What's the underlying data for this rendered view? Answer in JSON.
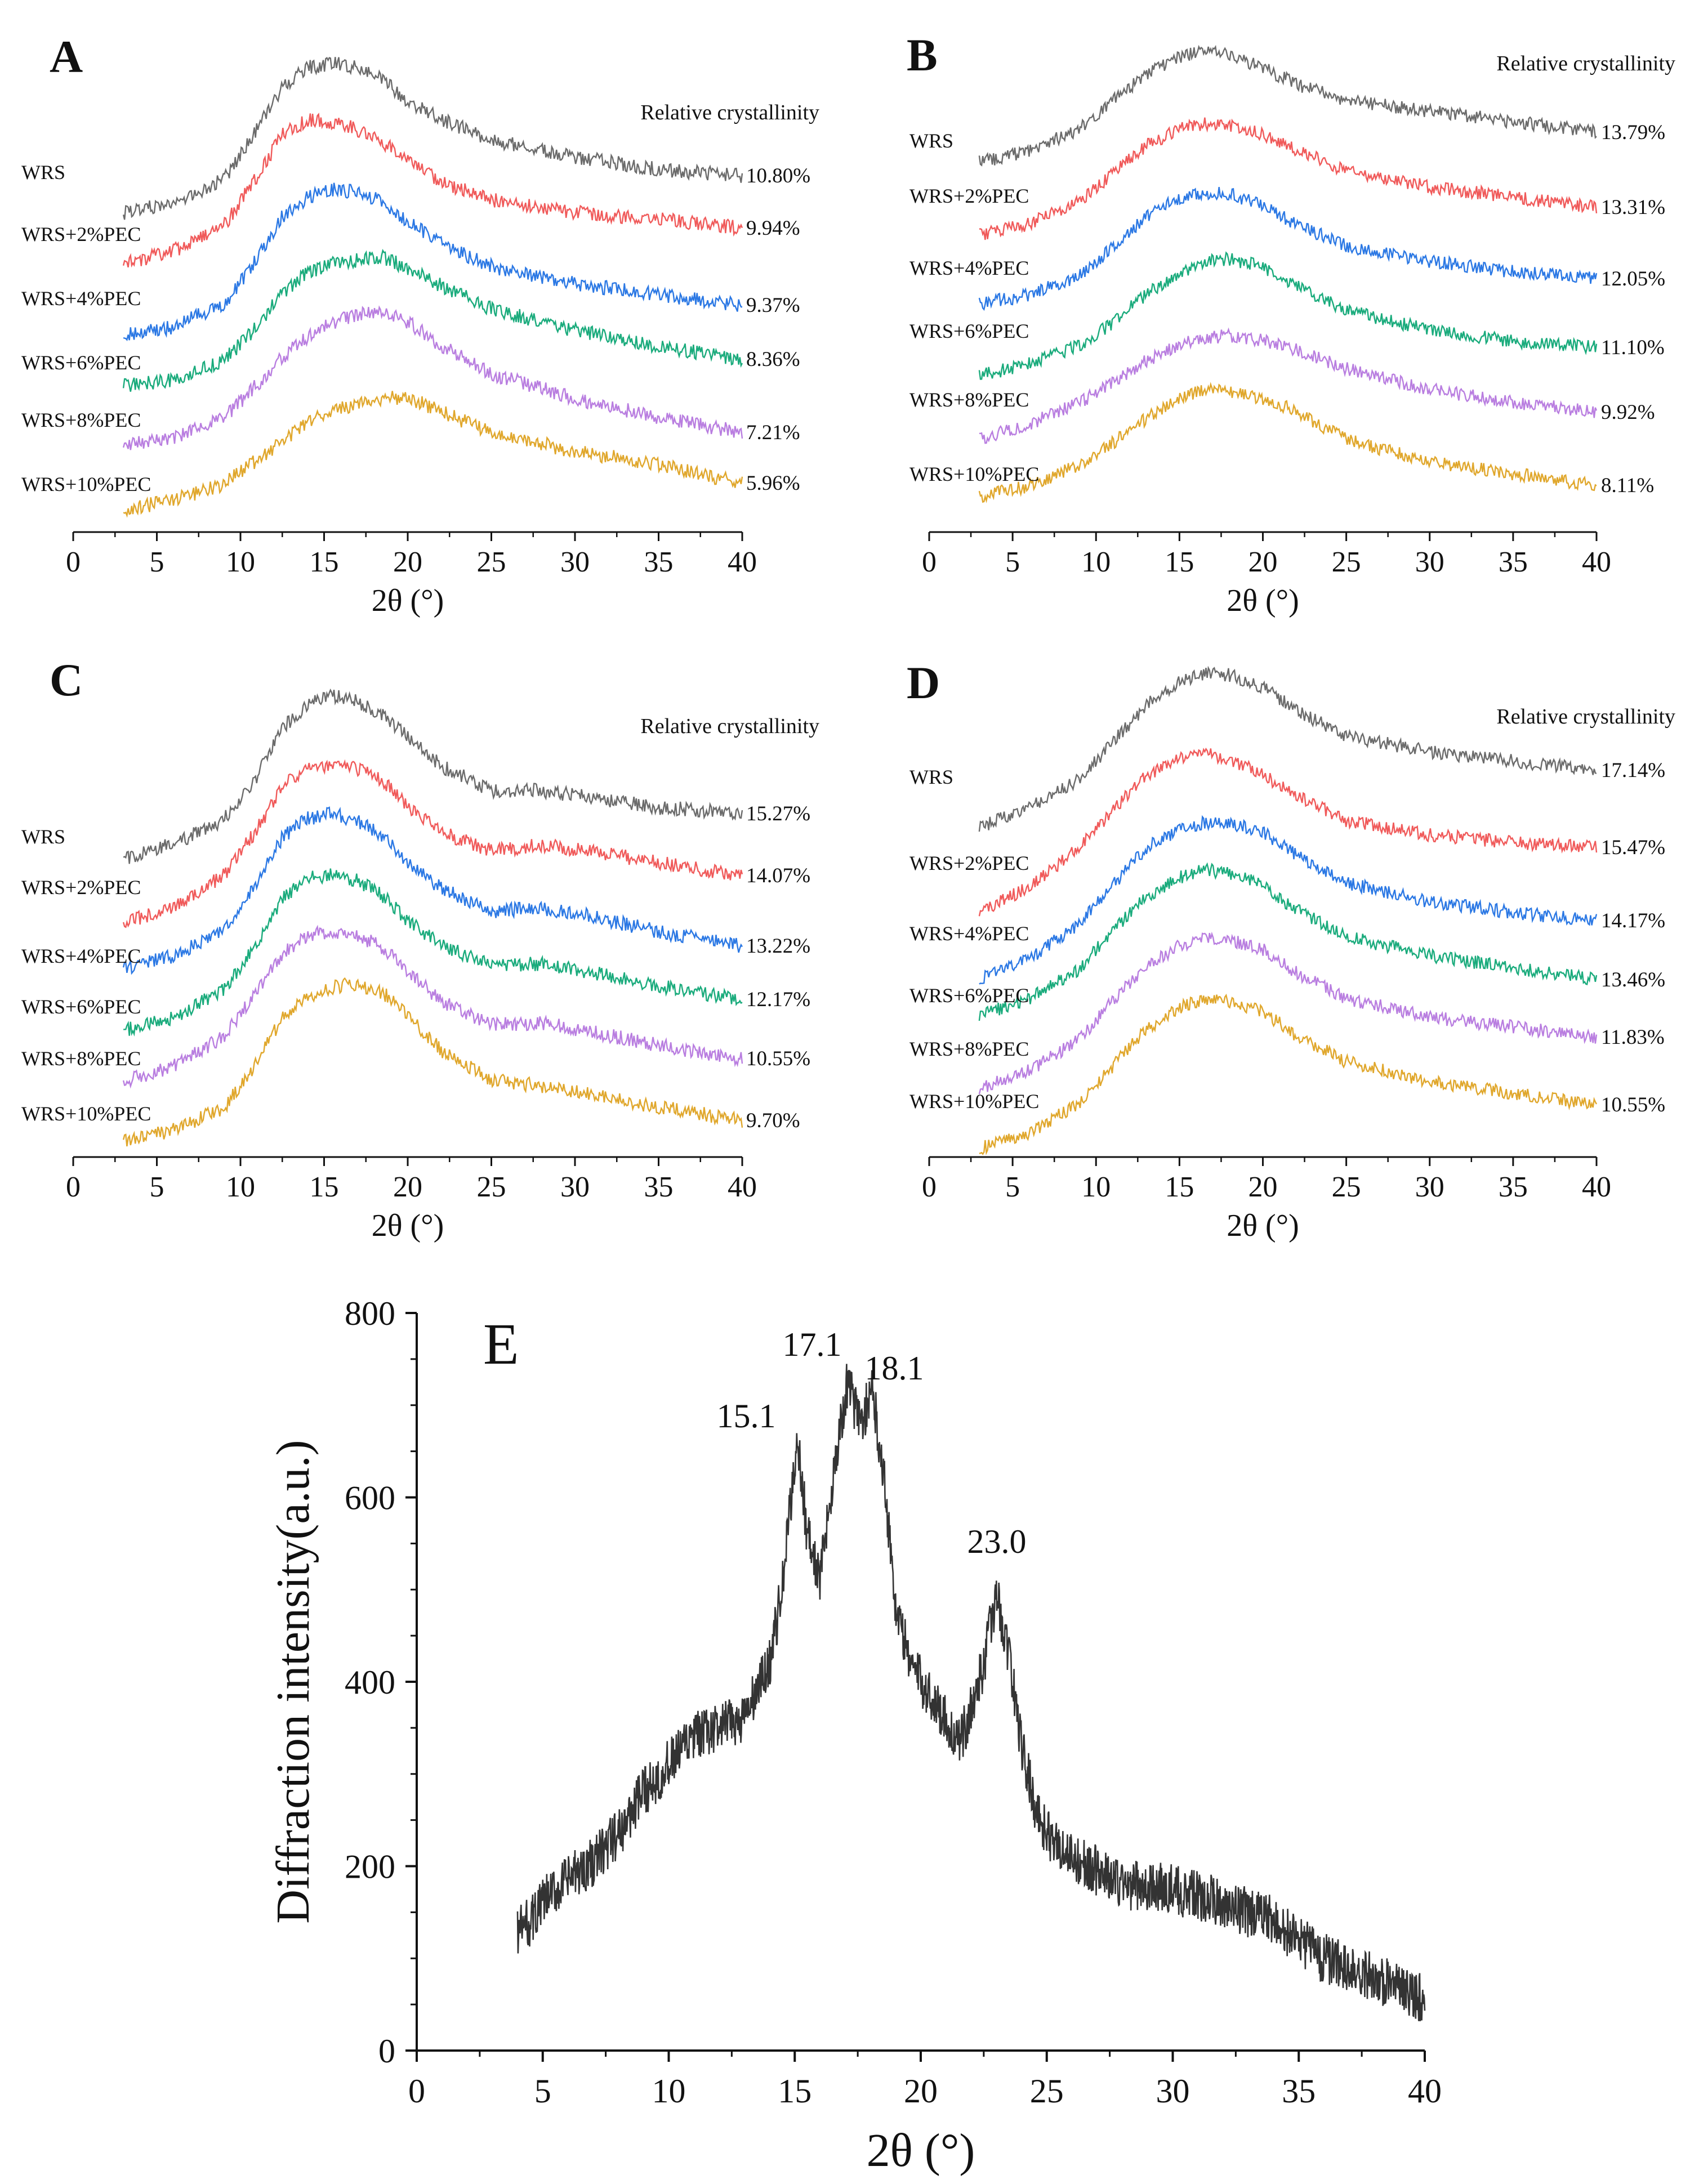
{
  "chart_data": [
    {
      "panel": "A",
      "type": "line",
      "xlabel": "2θ (°)",
      "xlim": [
        0,
        40
      ],
      "xticks": [
        0,
        5,
        10,
        15,
        20,
        25,
        30,
        35,
        40
      ],
      "annotation_title": "Relative crystallinity",
      "series": [
        {
          "name": "WRS",
          "value_label": "10.80%",
          "color": "#6b6b6b",
          "x": [
            3,
            6,
            9,
            11,
            12.5,
            14,
            15.5,
            17,
            18.5,
            20,
            22,
            25,
            30,
            35,
            40
          ],
          "y": [
            0,
            0.05,
            0.2,
            0.55,
            0.85,
            0.98,
            1.0,
            0.96,
            0.86,
            0.7,
            0.55,
            0.38,
            0.22,
            0.1,
            0.02
          ]
        },
        {
          "name": "WRS+2%PEC",
          "value_label": "9.94%",
          "color": "#f05a5a",
          "x": [
            3,
            6,
            9,
            11,
            12.5,
            14,
            15.5,
            17,
            18.5,
            20,
            22,
            25,
            30,
            35,
            40
          ],
          "y": [
            0,
            0.08,
            0.25,
            0.6,
            0.9,
            1.0,
            0.98,
            0.92,
            0.82,
            0.68,
            0.52,
            0.38,
            0.27,
            0.2,
            0.12
          ]
        },
        {
          "name": "WRS+4%PEC",
          "value_label": "9.37%",
          "color": "#2b78e4",
          "x": [
            3,
            6,
            9,
            11,
            12.5,
            14,
            15.5,
            17,
            18.5,
            20,
            22,
            25,
            30,
            35,
            40
          ],
          "y": [
            0,
            0.05,
            0.2,
            0.52,
            0.82,
            0.95,
            1.0,
            0.98,
            0.9,
            0.75,
            0.58,
            0.4,
            0.25,
            0.15,
            0.05
          ]
        },
        {
          "name": "WRS+6%PEC",
          "value_label": "8.36%",
          "color": "#1aab7c",
          "x": [
            3,
            6,
            9,
            11,
            12.5,
            14,
            15.5,
            17,
            18.5,
            20,
            22,
            25,
            30,
            35,
            40
          ],
          "y": [
            0,
            0.05,
            0.2,
            0.45,
            0.7,
            0.85,
            0.92,
            0.95,
            0.98,
            0.9,
            0.78,
            0.62,
            0.48,
            0.38,
            0.3
          ]
        },
        {
          "name": "WRS+8%PEC",
          "value_label": "7.21%",
          "color": "#b97ee0",
          "x": [
            3,
            6,
            9,
            11,
            12.5,
            14,
            15.5,
            17,
            18.5,
            20,
            22,
            25,
            30,
            35,
            40
          ],
          "y": [
            0,
            0.05,
            0.2,
            0.45,
            0.65,
            0.8,
            0.9,
            0.97,
            1.0,
            0.92,
            0.75,
            0.55,
            0.38,
            0.25,
            0.15
          ]
        },
        {
          "name": "WRS+10%PEC",
          "value_label": "5.96%",
          "color": "#e0a72c",
          "x": [
            3,
            6,
            9,
            11,
            12.5,
            14,
            15.5,
            17,
            18.5,
            20,
            22,
            25,
            30,
            35,
            40
          ],
          "y": [
            0,
            0.1,
            0.25,
            0.45,
            0.6,
            0.75,
            0.85,
            0.92,
            0.98,
            1.0,
            0.92,
            0.8,
            0.72,
            0.68,
            0.6
          ]
        }
      ]
    },
    {
      "panel": "B",
      "type": "line",
      "xlabel": "2θ (°)",
      "xlim": [
        0,
        40
      ],
      "xticks": [
        0,
        5,
        10,
        15,
        20,
        25,
        30,
        35,
        40
      ],
      "annotation_title": "Relative crystallinity",
      "series": [
        {
          "name": "WRS",
          "value_label": "13.79%",
          "color": "#6b6b6b",
          "x": [
            3,
            6,
            9,
            11,
            13,
            15,
            16.5,
            18,
            20,
            22,
            25,
            30,
            35,
            40
          ],
          "y": [
            0,
            0.1,
            0.3,
            0.55,
            0.8,
            0.95,
            1.0,
            0.96,
            0.85,
            0.7,
            0.55,
            0.45,
            0.35,
            0.25
          ]
        },
        {
          "name": "WRS+2%PEC",
          "value_label": "13.31%",
          "color": "#f05a5a",
          "x": [
            3,
            6,
            9,
            11,
            13,
            15,
            16.5,
            18,
            20,
            22,
            25,
            30,
            35,
            40
          ],
          "y": [
            0,
            0.1,
            0.3,
            0.55,
            0.8,
            0.95,
            1.0,
            0.98,
            0.9,
            0.75,
            0.55,
            0.4,
            0.3,
            0.2
          ]
        },
        {
          "name": "WRS+4%PEC",
          "value_label": "12.05%",
          "color": "#2b78e4",
          "x": [
            3,
            6,
            9,
            11,
            13,
            15,
            16.5,
            18,
            20,
            22,
            25,
            30,
            35,
            40
          ],
          "y": [
            0,
            0.08,
            0.25,
            0.5,
            0.78,
            0.95,
            1.0,
            0.98,
            0.88,
            0.7,
            0.5,
            0.35,
            0.25,
            0.18
          ]
        },
        {
          "name": "WRS+6%PEC",
          "value_label": "11.10%",
          "color": "#1aab7c",
          "x": [
            3,
            6,
            9,
            11,
            13,
            15,
            16.5,
            18,
            20,
            22,
            25,
            30,
            35,
            40
          ],
          "y": [
            0,
            0.1,
            0.25,
            0.45,
            0.7,
            0.88,
            0.98,
            1.0,
            0.92,
            0.75,
            0.5,
            0.3,
            0.18,
            0.1
          ]
        },
        {
          "name": "WRS+8%PEC",
          "value_label": "9.92%",
          "color": "#b97ee0",
          "x": [
            3,
            6,
            9,
            11,
            13,
            15,
            16.5,
            18,
            20,
            22,
            25,
            30,
            35,
            40
          ],
          "y": [
            0,
            0.15,
            0.35,
            0.55,
            0.75,
            0.9,
            0.97,
            1.0,
            0.96,
            0.88,
            0.72,
            0.55,
            0.45,
            0.38
          ]
        },
        {
          "name": "WRS+10%PEC",
          "value_label": "8.11%",
          "color": "#e0a72c",
          "x": [
            3,
            6,
            9,
            11,
            13,
            15,
            16.5,
            18,
            20,
            22,
            25,
            30,
            35,
            40
          ],
          "y": [
            0,
            0.1,
            0.3,
            0.5,
            0.72,
            0.9,
            1.0,
            0.98,
            0.92,
            0.8,
            0.55,
            0.35,
            0.25,
            0.15
          ]
        }
      ]
    },
    {
      "panel": "C",
      "type": "line",
      "xlabel": "2θ (°)",
      "xlim": [
        0,
        40
      ],
      "xticks": [
        0,
        5,
        10,
        15,
        20,
        25,
        30,
        35,
        40
      ],
      "annotation_title": "Relative crystallinity",
      "series": [
        {
          "name": "WRS",
          "value_label": "15.27%",
          "color": "#6b6b6b",
          "x": [
            3,
            6,
            9,
            11,
            12.5,
            14,
            15.5,
            17,
            18.5,
            20,
            22,
            25,
            28,
            30,
            35,
            40
          ],
          "y": [
            0,
            0.08,
            0.22,
            0.5,
            0.8,
            0.95,
            1.0,
            0.95,
            0.85,
            0.7,
            0.5,
            0.32,
            0.3,
            0.26,
            0.15,
            0.08
          ]
        },
        {
          "name": "WRS+2%PEC",
          "value_label": "14.07%",
          "color": "#f05a5a",
          "x": [
            3,
            6,
            9,
            11,
            12.5,
            14,
            15.5,
            17,
            18.5,
            20,
            22,
            25,
            28,
            30,
            35,
            40
          ],
          "y": [
            0,
            0.1,
            0.3,
            0.6,
            0.88,
            0.98,
            1.0,
            0.98,
            0.9,
            0.72,
            0.55,
            0.42,
            0.45,
            0.42,
            0.32,
            0.22
          ]
        },
        {
          "name": "WRS+4%PEC",
          "value_label": "13.22%",
          "color": "#2b78e4",
          "x": [
            3,
            6,
            9,
            11,
            12.5,
            14,
            15.5,
            17,
            18.5,
            20,
            22,
            25,
            28,
            30,
            35,
            40
          ],
          "y": [
            0,
            0.08,
            0.25,
            0.55,
            0.85,
            0.97,
            1.0,
            0.95,
            0.85,
            0.68,
            0.5,
            0.35,
            0.36,
            0.33,
            0.2,
            0.1
          ]
        },
        {
          "name": "WRS+6%PEC",
          "value_label": "12.17%",
          "color": "#1aab7c",
          "x": [
            3,
            6,
            9,
            11,
            12.5,
            14,
            15.5,
            17,
            18.5,
            20,
            22,
            25,
            28,
            30,
            35,
            40
          ],
          "y": [
            0,
            0.08,
            0.25,
            0.55,
            0.85,
            0.97,
            1.0,
            0.95,
            0.85,
            0.68,
            0.52,
            0.38,
            0.38,
            0.34,
            0.22,
            0.12
          ]
        },
        {
          "name": "WRS+8%PEC",
          "value_label": "10.55%",
          "color": "#b97ee0",
          "x": [
            3,
            6,
            9,
            11,
            12.5,
            14,
            15.5,
            17,
            18.5,
            20,
            22,
            25,
            28,
            30,
            35,
            40
          ],
          "y": [
            0,
            0.1,
            0.3,
            0.6,
            0.85,
            0.97,
            1.0,
            0.98,
            0.9,
            0.75,
            0.55,
            0.4,
            0.42,
            0.38,
            0.28,
            0.2
          ]
        },
        {
          "name": "WRS+10%PEC",
          "value_label": "9.70%",
          "color": "#e0a72c",
          "x": [
            3,
            6,
            9,
            11,
            12.5,
            14,
            15.5,
            17,
            18.5,
            20,
            22,
            25,
            28,
            30,
            35,
            40
          ],
          "y": [
            0,
            0.06,
            0.2,
            0.5,
            0.78,
            0.92,
            0.98,
            1.0,
            0.94,
            0.78,
            0.55,
            0.35,
            0.3,
            0.26,
            0.15,
            0.05
          ]
        }
      ]
    },
    {
      "panel": "D",
      "type": "line",
      "xlabel": "2θ (°)",
      "xlim": [
        0,
        40
      ],
      "xticks": [
        0,
        5,
        10,
        15,
        20,
        25,
        30,
        35,
        40
      ],
      "annotation_title": "Relative crystallinity",
      "series": [
        {
          "name": "WRS",
          "value_label": "17.14%",
          "color": "#6b6b6b",
          "x": [
            3,
            6,
            9,
            11,
            13,
            15,
            16.5,
            18,
            20,
            22,
            25,
            30,
            35,
            40
          ],
          "y": [
            0,
            0.12,
            0.3,
            0.55,
            0.8,
            0.95,
            1.0,
            0.98,
            0.88,
            0.7,
            0.5,
            0.35,
            0.25,
            0.15
          ]
        },
        {
          "name": "WRS+2%PEC",
          "value_label": "15.47%",
          "color": "#f05a5a",
          "x": [
            3,
            6,
            9,
            11,
            13,
            15,
            16.5,
            18,
            20,
            22,
            25,
            30,
            35,
            40
          ],
          "y": [
            0,
            0.15,
            0.4,
            0.65,
            0.88,
            0.98,
            1.0,
            0.95,
            0.82,
            0.65,
            0.45,
            0.3,
            0.2,
            0.12
          ]
        },
        {
          "name": "WRS+4%PEC",
          "value_label": "14.17%",
          "color": "#2b78e4",
          "x": [
            3,
            6,
            9,
            11,
            13,
            15,
            16.5,
            18,
            20,
            22,
            25,
            30,
            35,
            40
          ],
          "y": [
            0,
            0.12,
            0.35,
            0.6,
            0.85,
            0.96,
            1.0,
            0.98,
            0.9,
            0.72,
            0.5,
            0.32,
            0.2,
            0.1
          ]
        },
        {
          "name": "WRS+6%PEC",
          "value_label": "13.46%",
          "color": "#1aab7c",
          "x": [
            3,
            6,
            9,
            11,
            13,
            15,
            16.5,
            18,
            20,
            22,
            25,
            30,
            35,
            40
          ],
          "y": [
            0,
            0.12,
            0.32,
            0.58,
            0.82,
            0.95,
            1.0,
            0.97,
            0.88,
            0.7,
            0.5,
            0.35,
            0.25,
            0.15
          ]
        },
        {
          "name": "WRS+8%PEC",
          "value_label": "11.83%",
          "color": "#b97ee0",
          "x": [
            3,
            6,
            9,
            11,
            13,
            15,
            16.5,
            18,
            20,
            22,
            25,
            30,
            35,
            40
          ],
          "y": [
            0,
            0.12,
            0.32,
            0.58,
            0.82,
            0.95,
            1.0,
            0.98,
            0.9,
            0.72,
            0.52,
            0.36,
            0.26,
            0.16
          ]
        },
        {
          "name": "WRS+10%PEC",
          "value_label": "10.55%",
          "color": "#e0a72c",
          "x": [
            3,
            6,
            9,
            11,
            13,
            15,
            16.5,
            18,
            20,
            22,
            25,
            30,
            35,
            40
          ],
          "y": [
            0,
            0.1,
            0.3,
            0.55,
            0.8,
            0.95,
            1.0,
            0.98,
            0.9,
            0.72,
            0.52,
            0.36,
            0.25,
            0.15
          ]
        }
      ]
    },
    {
      "panel": "E",
      "type": "line",
      "xlabel": "2θ (°)",
      "ylabel": "Diffraction intensity(a.u.)",
      "xlim": [
        0,
        40
      ],
      "ylim": [
        0,
        800
      ],
      "xticks": [
        0,
        5,
        10,
        15,
        20,
        25,
        30,
        35,
        40
      ],
      "yticks": [
        0,
        200,
        400,
        600,
        800
      ],
      "peak_labels": [
        {
          "text": "15.1",
          "x": 15.1,
          "y": 690
        },
        {
          "text": "17.1",
          "x": 17.1,
          "y": 740
        },
        {
          "text": "18.1",
          "x": 18.1,
          "y": 720
        },
        {
          "text": "23.0",
          "x": 23.0,
          "y": 515
        }
      ],
      "series": [
        {
          "color": "#333333",
          "x": [
            4,
            4.5,
            5,
            6,
            7,
            8,
            9,
            10,
            11,
            12,
            13,
            14,
            14.5,
            15.1,
            15.5,
            16,
            16.5,
            17.1,
            17.6,
            18.1,
            18.6,
            19,
            19.5,
            20,
            21,
            21.5,
            22,
            22.5,
            23.0,
            23.5,
            24,
            24.5,
            25,
            26,
            27,
            28,
            30,
            32,
            34,
            36,
            38,
            40
          ],
          "y": [
            130,
            140,
            160,
            185,
            205,
            235,
            280,
            310,
            340,
            350,
            360,
            420,
            500,
            665,
            560,
            510,
            620,
            725,
            680,
            715,
            610,
            480,
            430,
            400,
            360,
            330,
            370,
            420,
            495,
            430,
            330,
            270,
            235,
            210,
            195,
            180,
            175,
            160,
            140,
            100,
            80,
            55
          ]
        }
      ]
    }
  ]
}
